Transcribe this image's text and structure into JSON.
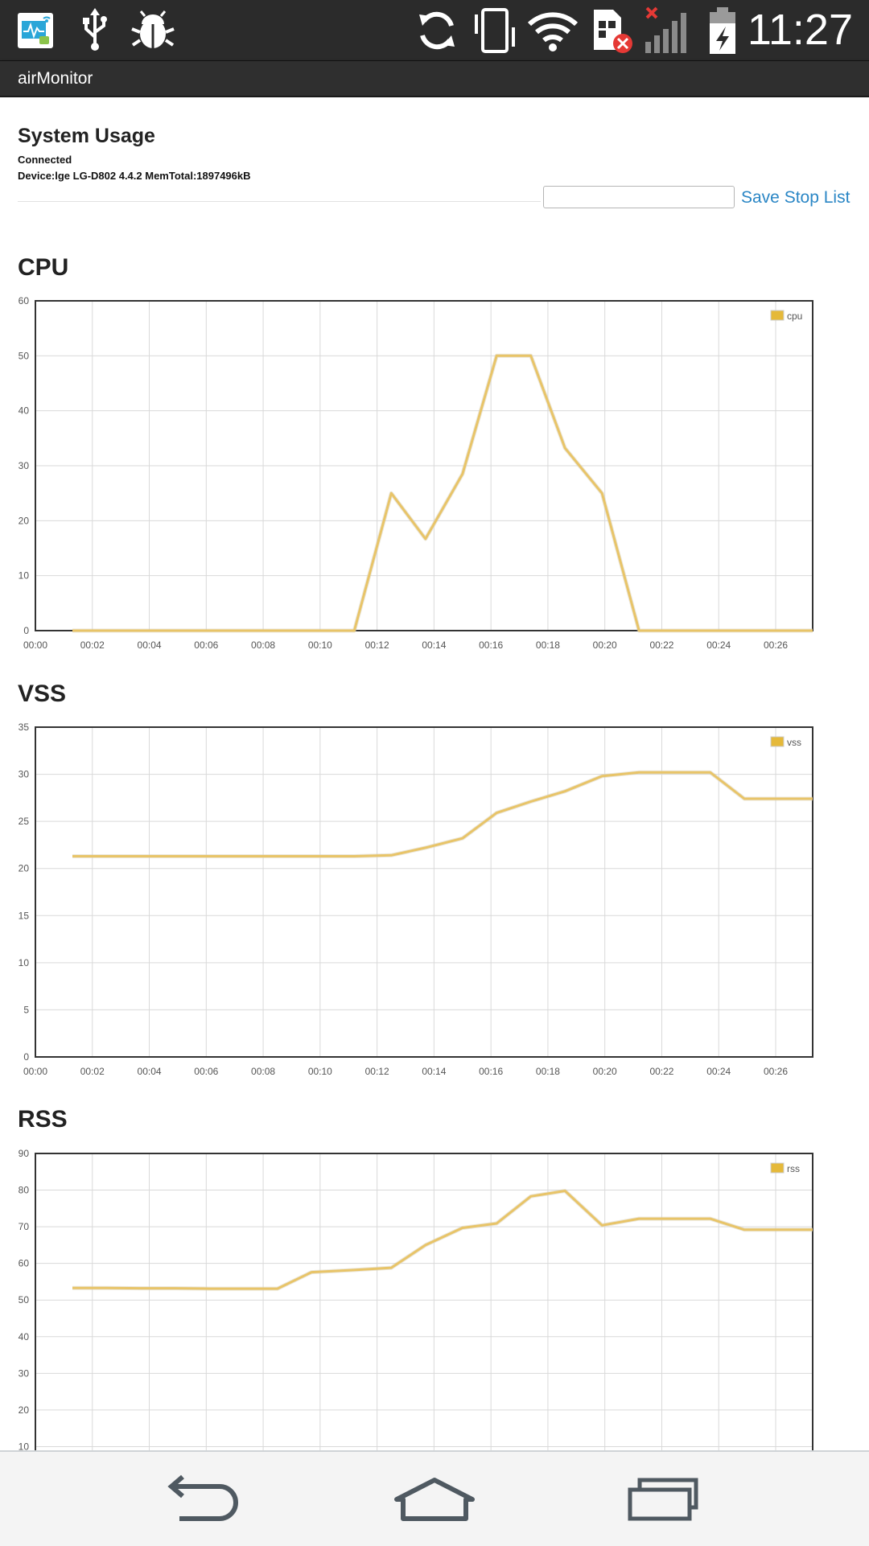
{
  "status_bar": {
    "time": "11:27",
    "icons": [
      "airmonitor-app-icon",
      "usb-icon",
      "debug-bug-icon",
      "sync-icon",
      "vibrate-icon",
      "wifi-icon",
      "sim-error-icon",
      "signal-icon",
      "battery-charging-icon"
    ]
  },
  "app": {
    "title": "airMonitor"
  },
  "header": {
    "title": "System Usage",
    "status": "Connected",
    "device": "Device:lge LG-D802 4.4.2 MemTotal:1897496kB",
    "filter_value": "",
    "action_label": "Save Stop List"
  },
  "colors": {
    "series": "#e8c468",
    "legend_swatch": "#e5b93a",
    "link": "#2a86c5",
    "grid": "#d9d9d9",
    "frame": "#333333"
  },
  "nav": {
    "icons": [
      "back-icon",
      "home-icon",
      "recent-apps-icon"
    ]
  },
  "chart_data": [
    {
      "type": "line",
      "title": "CPU",
      "xlabel": "",
      "ylabel": "",
      "x_ticks": [
        "00:00",
        "00:02",
        "00:04",
        "00:06",
        "00:08",
        "00:10",
        "00:12",
        "00:14",
        "00:16",
        "00:18",
        "00:20",
        "00:22",
        "00:24",
        "00:26"
      ],
      "xlim": [
        0,
        27.3
      ],
      "ylim": [
        0,
        60
      ],
      "y_ticks": [
        0,
        10,
        20,
        30,
        40,
        50,
        60
      ],
      "grid": true,
      "legend_position": "top-right",
      "series": [
        {
          "name": "cpu",
          "x": [
            1.3,
            2.5,
            3.7,
            4.9,
            6.1,
            7.3,
            8.5,
            9.7,
            11.2,
            12.5,
            13.7,
            15.0,
            16.2,
            17.4,
            18.6,
            19.9,
            21.2,
            22.5,
            23.7,
            24.9,
            26.1,
            27.3
          ],
          "values": [
            0,
            0,
            0,
            0,
            0,
            0,
            0,
            0,
            0,
            25,
            16.7,
            28.5,
            50,
            50,
            33.2,
            25,
            0,
            0,
            0,
            0,
            0,
            0
          ]
        }
      ]
    },
    {
      "type": "line",
      "title": "VSS",
      "xlabel": "",
      "ylabel": "",
      "x_ticks": [
        "00:00",
        "00:02",
        "00:04",
        "00:06",
        "00:08",
        "00:10",
        "00:12",
        "00:14",
        "00:16",
        "00:18",
        "00:20",
        "00:22",
        "00:24",
        "00:26"
      ],
      "xlim": [
        0,
        27.3
      ],
      "ylim": [
        0,
        35
      ],
      "y_ticks": [
        0,
        5,
        10,
        15,
        20,
        25,
        30,
        35
      ],
      "grid": true,
      "legend_position": "top-right",
      "series": [
        {
          "name": "vss",
          "x": [
            1.3,
            2.5,
            3.7,
            4.9,
            6.1,
            7.3,
            8.5,
            9.7,
            11.2,
            12.5,
            13.7,
            15.0,
            16.2,
            17.4,
            18.6,
            19.9,
            21.2,
            22.5,
            23.7,
            24.9,
            26.1,
            27.3
          ],
          "values": [
            21.3,
            21.3,
            21.3,
            21.3,
            21.3,
            21.3,
            21.3,
            21.3,
            21.3,
            21.4,
            22.2,
            23.2,
            25.9,
            27.1,
            28.2,
            29.8,
            30.2,
            30.2,
            30.2,
            27.4,
            27.4,
            27.4
          ]
        }
      ]
    },
    {
      "type": "line",
      "title": "RSS",
      "xlabel": "",
      "ylabel": "",
      "x_ticks": [],
      "xlim": [
        0,
        27.3
      ],
      "ylim": [
        0,
        90
      ],
      "y_ticks": [
        10,
        20,
        30,
        40,
        50,
        60,
        70,
        80,
        90
      ],
      "grid": true,
      "legend_position": "top-right",
      "series": [
        {
          "name": "rss",
          "x": [
            1.3,
            2.5,
            3.7,
            4.9,
            6.1,
            7.3,
            8.5,
            9.7,
            11.2,
            12.5,
            13.7,
            15.0,
            16.2,
            17.4,
            18.6,
            19.9,
            21.2,
            22.5,
            23.7,
            24.9,
            26.1,
            27.3
          ],
          "values": [
            53.3,
            53.3,
            53.2,
            53.2,
            53.1,
            53.1,
            53.1,
            57.6,
            58.2,
            58.8,
            65.0,
            69.7,
            70.9,
            78.3,
            79.8,
            70.4,
            72.2,
            72.2,
            72.2,
            69.2,
            69.2,
            69.2
          ]
        }
      ]
    }
  ]
}
